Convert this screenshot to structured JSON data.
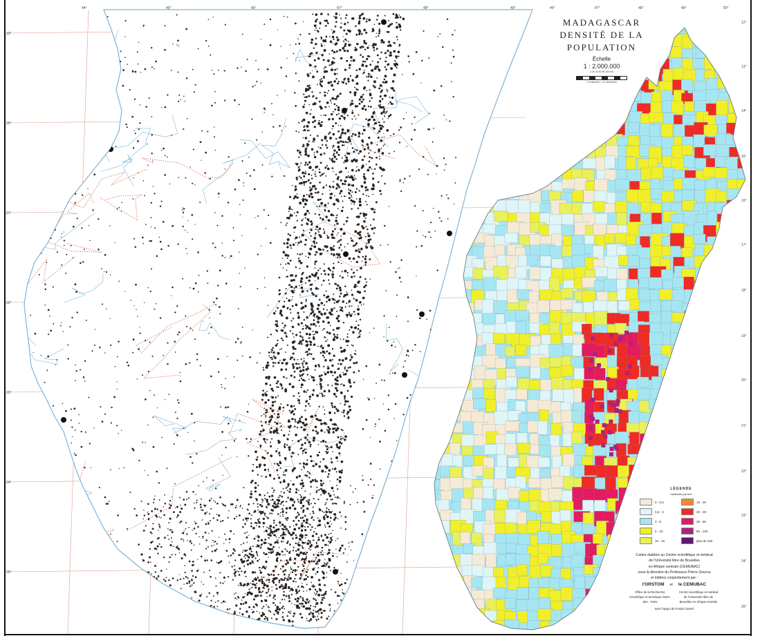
{
  "title": {
    "line1": "MADAGASCAR",
    "line2": "DENSITÉ DE LA POPULATION",
    "scale_label": "Échelle",
    "scale_value": "1 : 2.000.000",
    "scale_ticks": "0   20   40   60   80   100 km",
    "scale_note": "1 centimètre = 20 kilomètres"
  },
  "legend": {
    "title": "LÉGENDE",
    "unit": "Habitants par km²",
    "items": [
      {
        "label": "0 - 0,5",
        "color": "#f5ead6"
      },
      {
        "label": "15 - 20",
        "color": "#f08a33"
      },
      {
        "label": "0,5 - 3",
        "color": "#dff5f8"
      },
      {
        "label": "20 - 30",
        "color": "#ee2b25"
      },
      {
        "label": "3 - 6",
        "color": "#a6e6f2"
      },
      {
        "label": "30 - 50",
        "color": "#e21c5e"
      },
      {
        "label": "6 - 10",
        "color": "#f0ef2a"
      },
      {
        "label": "50 - 100",
        "color": "#b0207d"
      },
      {
        "label": "10 - 15",
        "color": "#e9f05a"
      },
      {
        "label": "plus de 100",
        "color": "#5c1a6b"
      }
    ]
  },
  "credits": {
    "line1": "Cartes établies au Centre scientifique et médical",
    "line2": "de l'Université libre de Bruxelles",
    "line3": "en Afrique centrale (CEMUBAC)",
    "line4": "sous la direction du Professeur Pierre Gourou",
    "line5": "et éditées conjointement par :",
    "org1": "l'ORSTOM",
    "conj": "et",
    "org2": "le CEMUBAC",
    "org1_desc": "Office de la Recherche scientifique et technique Outre-Mer - Paris",
    "org2_desc": "Centre scientifique et médical de l'Université libre de Bruxelles en Afrique centrale",
    "foot": "avec l'appui du Fonds Cassel"
  },
  "graticule": {
    "top_longitudes": [
      "44°",
      "45°",
      "46°",
      "47°",
      "48°",
      "49°",
      "46°",
      "47°",
      "48°",
      "49°",
      "50°"
    ],
    "left_latitudes": [
      "19°",
      "20°",
      "21°",
      "22°",
      "23°",
      "24°",
      "25°"
    ],
    "right_latitudes": [
      "12°",
      "13°",
      "14°",
      "15°",
      "16°",
      "17°",
      "18°",
      "19°",
      "20°",
      "21°",
      "22°",
      "23°",
      "24°",
      "25°"
    ]
  },
  "colors": {
    "ocean_line": "#7fb3d5",
    "grid_line": "#d9a08a",
    "dot": "#2a2420",
    "border_dotted": "#d0674c",
    "boundary": "#6a7a88"
  }
}
